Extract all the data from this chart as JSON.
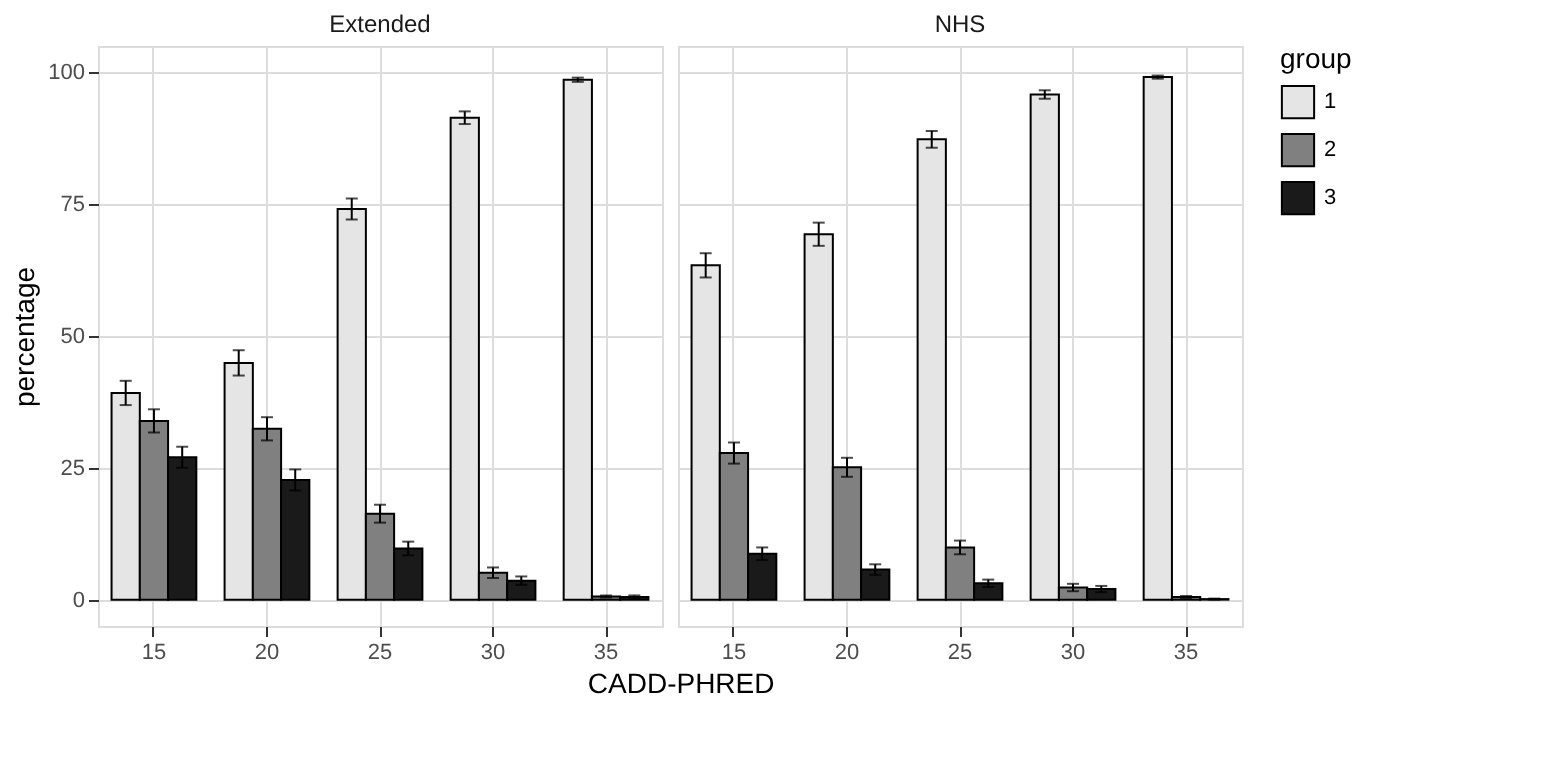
{
  "chart_data": [
    {
      "type": "bar",
      "title": "Extended",
      "xlabel": "CADD-PHRED",
      "ylabel": "percentage",
      "categories": [
        "15",
        "20",
        "25",
        "30",
        "35"
      ],
      "ylim": [
        -5,
        105
      ],
      "yticks": [
        0,
        25,
        50,
        75,
        100
      ],
      "grid": true,
      "tick_labels": "xy",
      "legend": "right",
      "series": [
        {
          "name": "1",
          "color": "#e5e5e5",
          "values": [
            39.2,
            44.9,
            74.1,
            91.4,
            98.6
          ],
          "errors": [
            2.3,
            2.4,
            2.0,
            1.2,
            0.4
          ]
        },
        {
          "name": "2",
          "color": "#808080",
          "values": [
            33.9,
            32.4,
            16.3,
            5.1,
            0.6
          ],
          "errors": [
            2.2,
            2.2,
            1.7,
            1.0,
            0.2
          ]
        },
        {
          "name": "3",
          "color": "#1a1a1a",
          "values": [
            27.0,
            22.7,
            9.7,
            3.6,
            0.5
          ],
          "errors": [
            2.0,
            2.0,
            1.3,
            0.8,
            0.3
          ]
        }
      ]
    },
    {
      "type": "bar",
      "title": "NHS",
      "categories": [
        "15",
        "20",
        "25",
        "30",
        "35"
      ],
      "ylim": [
        -5,
        105
      ],
      "yticks": [
        0,
        25,
        50,
        75,
        100
      ],
      "grid": true,
      "tick_labels": "x",
      "legend": "right",
      "legend_title": "group",
      "series": [
        {
          "name": "1",
          "color": "#e5e5e5",
          "values": [
            63.4,
            69.3,
            87.3,
            95.8,
            99.1
          ],
          "errors": [
            2.3,
            2.2,
            1.6,
            0.8,
            0.3
          ]
        },
        {
          "name": "2",
          "color": "#808080",
          "values": [
            27.8,
            25.1,
            9.9,
            2.3,
            0.5
          ],
          "errors": [
            2.0,
            1.8,
            1.3,
            0.7,
            0.2
          ]
        },
        {
          "name": "3",
          "color": "#1a1a1a",
          "values": [
            8.7,
            5.7,
            3.1,
            2.0,
            0.1
          ],
          "errors": [
            1.2,
            1.0,
            0.7,
            0.6,
            0.1
          ]
        }
      ]
    }
  ]
}
